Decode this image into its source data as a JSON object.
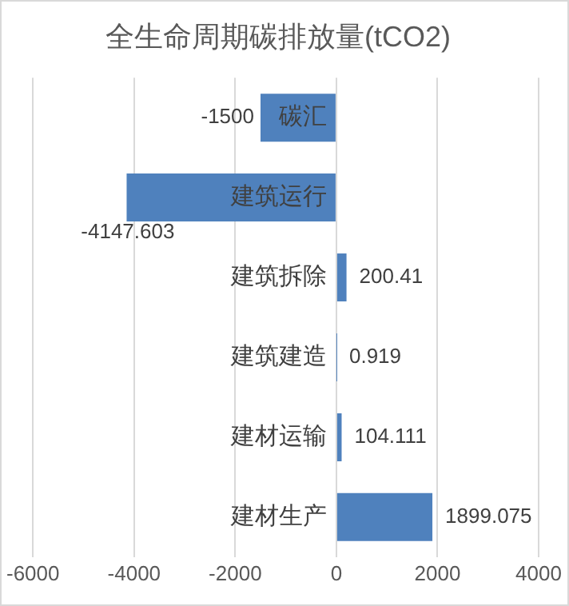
{
  "chart_data": {
    "type": "bar",
    "orientation": "horizontal",
    "title": "全生命周期碳排放量(tCO2)",
    "categories": [
      "碳汇",
      "建筑运行",
      "建筑拆除",
      "建筑建造",
      "建材运输",
      "建材生产"
    ],
    "values": [
      -1500,
      -4147.603,
      200.41,
      0.919,
      104.111,
      1899.075
    ],
    "color": "#4f81bd",
    "xlim": [
      -6000,
      4000
    ],
    "xticks": [
      -6000,
      -4000,
      -2000,
      0,
      2000,
      4000
    ],
    "grid": "x",
    "data_labels": true,
    "legend": false
  }
}
